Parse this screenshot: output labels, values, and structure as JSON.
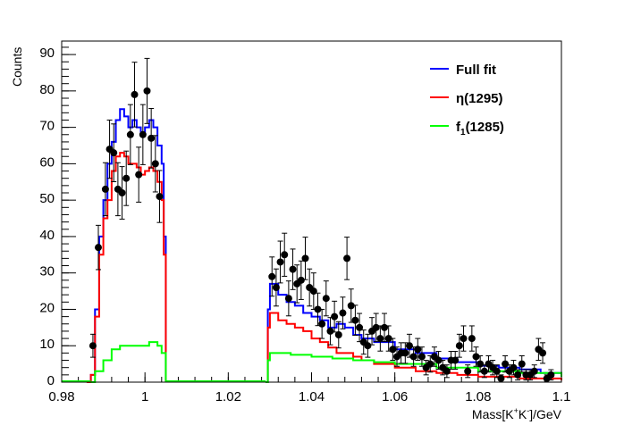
{
  "chart_data": {
    "type": "scatter",
    "title": "",
    "xlabel": "Mass[K+K-]/GeV",
    "xlabel_parts": {
      "main": "Mass[K",
      "sup1": "+",
      "mid": "K",
      "sup2": "-",
      "end": "]/GeV"
    },
    "ylabel": "Counts",
    "xlim": [
      0.98,
      1.1
    ],
    "ylim": [
      0,
      93.7
    ],
    "x_ticks": [
      "0.98",
      "1",
      "1.02",
      "1.04",
      "1.06",
      "1.08",
      "1.1"
    ],
    "x_tick_values": [
      0.98,
      1.0,
      1.02,
      1.04,
      1.06,
      1.08,
      1.1
    ],
    "y_ticks": [
      "0",
      "10",
      "20",
      "30",
      "40",
      "50",
      "60",
      "70",
      "80",
      "90"
    ],
    "y_tick_values": [
      0,
      10,
      20,
      30,
      40,
      50,
      60,
      70,
      80,
      90
    ],
    "legend_position": "top-right",
    "data": {
      "name": "Data",
      "color": "#000000",
      "x": [
        0.9875,
        0.9888,
        0.9905,
        0.9915,
        0.9925,
        0.9935,
        0.9945,
        0.9955,
        0.9965,
        0.9975,
        0.9985,
        0.9995,
        1.0005,
        1.0015,
        1.0025,
        1.0035,
        1.0305,
        1.0315,
        1.0325,
        1.0335,
        1.0345,
        1.0355,
        1.0365,
        1.0375,
        1.0385,
        1.0395,
        1.0405,
        1.0415,
        1.0425,
        1.0435,
        1.0445,
        1.0455,
        1.0465,
        1.0475,
        1.0485,
        1.0495,
        1.0505,
        1.0515,
        1.0525,
        1.0535,
        1.0545,
        1.0555,
        1.0565,
        1.0575,
        1.0585,
        1.0595,
        1.0605,
        1.0615,
        1.0625,
        1.0635,
        1.0645,
        1.0655,
        1.0665,
        1.0675,
        1.0685,
        1.0695,
        1.0705,
        1.0715,
        1.0725,
        1.0735,
        1.0745,
        1.0755,
        1.0765,
        1.0775,
        1.0785,
        1.0795,
        1.0805,
        1.0815,
        1.0825,
        1.0835,
        1.0845,
        1.0855,
        1.0865,
        1.0875,
        1.0885,
        1.0895,
        1.0905,
        1.0915,
        1.0925,
        1.0935,
        1.0945,
        1.0955,
        1.0965,
        1.0975
      ],
      "y": [
        10,
        37,
        53,
        64,
        63,
        53,
        52,
        56,
        68,
        79,
        57,
        68,
        80,
        67,
        60,
        51,
        29,
        26,
        33,
        35,
        23,
        31,
        27,
        28,
        34,
        26,
        25,
        20,
        16,
        23,
        14,
        18,
        13,
        19,
        34,
        21,
        17,
        15,
        11,
        10,
        14,
        15,
        12,
        15,
        12,
        9,
        7,
        8,
        8,
        10,
        7,
        9,
        7,
        4,
        5,
        7,
        6,
        4,
        3,
        6,
        6,
        10,
        12,
        3,
        12,
        7,
        5,
        3,
        5,
        4,
        3,
        1,
        5,
        3,
        4,
        2,
        5,
        2,
        2,
        3,
        9,
        8,
        1,
        2
      ]
    },
    "series": [
      {
        "name": "Full fit",
        "color": "#0000ff",
        "segments": [
          {
            "x": [
              0.986,
              0.987,
              0.988,
              0.989,
              0.99,
              0.991,
              0.992,
              0.993,
              0.994,
              0.995,
              0.996,
              0.997,
              0.998,
              0.999,
              1.0,
              1.001,
              1.002,
              1.003,
              1.004,
              1.0045,
              1.005
            ],
            "y": [
              0,
              2,
              20,
              40,
              50,
              60,
              66,
              72,
              75,
              73,
              70,
              72,
              70,
              68,
              70,
              72,
              70,
              65,
              60,
              40,
              0
            ]
          },
          {
            "x": [
              1.029,
              1.0295,
              1.03,
              1.032,
              1.034,
              1.036,
              1.038,
              1.04,
              1.042,
              1.044,
              1.046,
              1.048,
              1.05,
              1.052,
              1.055,
              1.06,
              1.065,
              1.07,
              1.075,
              1.08,
              1.085,
              1.09,
              1.095,
              1.1
            ],
            "y": [
              0,
              20,
              27,
              24,
              22,
              21,
              19,
              18,
              17,
              15,
              16,
              15,
              13,
              12,
              11,
              9,
              8,
              6.5,
              5.5,
              4.5,
              4,
              3.5,
              2.5,
              1.5
            ]
          }
        ]
      },
      {
        "name": "η(1295)",
        "color": "#ff0000",
        "segments": [
          {
            "x": [
              0.986,
              0.987,
              0.988,
              0.989,
              0.99,
              0.991,
              0.992,
              0.993,
              0.994,
              0.995,
              0.996,
              0.997,
              0.998,
              0.999,
              1.0,
              1.001,
              1.002,
              1.003,
              1.004,
              1.0045,
              1.005
            ],
            "y": [
              0,
              2,
              18,
              35,
              45,
              50,
              58,
              62,
              63,
              62,
              60,
              60,
              59,
              57,
              58,
              59,
              58,
              55,
              50,
              35,
              0
            ]
          },
          {
            "x": [
              1.029,
              1.0295,
              1.03,
              1.032,
              1.034,
              1.036,
              1.038,
              1.04,
              1.042,
              1.044,
              1.046,
              1.048,
              1.05,
              1.052,
              1.055,
              1.06,
              1.065,
              1.07,
              1.075,
              1.08,
              1.09,
              1.1
            ],
            "y": [
              0,
              15,
              19,
              17,
              16,
              15,
              14,
              12,
              11,
              9.5,
              8,
              8,
              7,
              6,
              5,
              4,
              3,
              2.5,
              2,
              1.5,
              1,
              0.5
            ]
          }
        ]
      },
      {
        "name": "f1(1285)",
        "color": "#00ff00",
        "segments": [
          {
            "x": [
              0.987,
              0.988,
              0.99,
              0.992,
              0.994,
              0.996,
              0.998,
              1.0,
              1.001,
              1.002,
              1.003,
              1.004,
              1.005
            ],
            "y": [
              0,
              3,
              6,
              9,
              10,
              10,
              10,
              10,
              11,
              11,
              10,
              8,
              0
            ]
          },
          {
            "x": [
              1.029,
              1.0295,
              1.03,
              1.035,
              1.04,
              1.045,
              1.05,
              1.055,
              1.06,
              1.07,
              1.08,
              1.09,
              1.1
            ],
            "y": [
              0,
              6,
              8,
              7.5,
              7,
              6.5,
              6,
              5.5,
              5,
              4,
              3,
              2.5,
              1.5
            ]
          }
        ]
      }
    ],
    "legend": [
      {
        "label": "Full fit",
        "color": "#0000ff"
      },
      {
        "label_main": "η(1295)",
        "color": "#ff0000"
      },
      {
        "label_main": "f",
        "label_sub": "1",
        "label_rest": "(1285)",
        "color": "#00ff00"
      }
    ]
  }
}
